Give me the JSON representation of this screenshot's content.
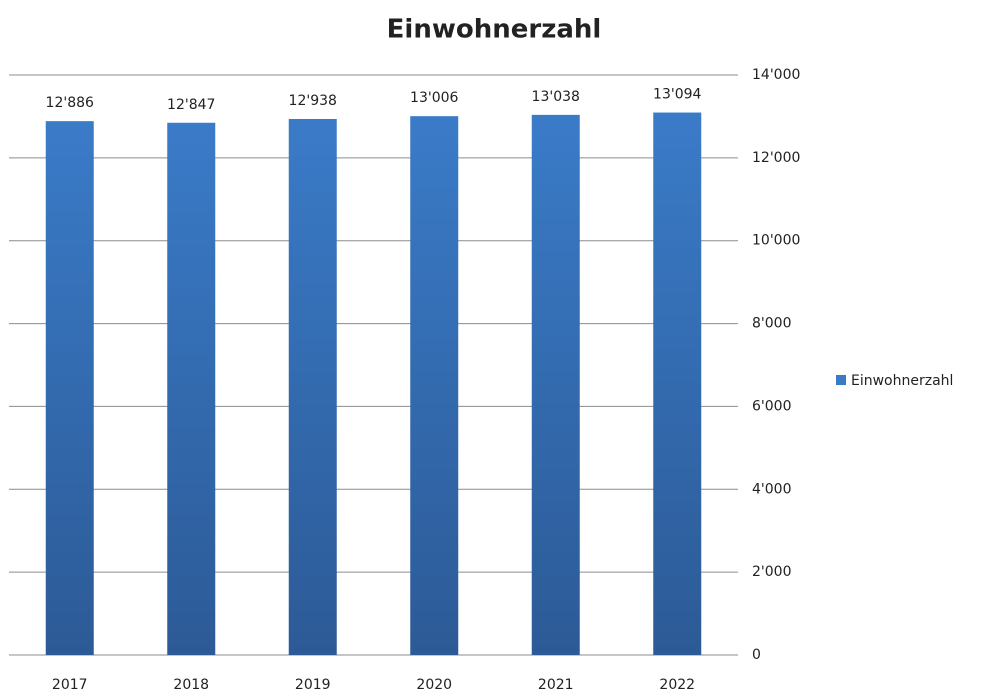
{
  "chart_data": {
    "type": "bar",
    "title": "Einwohnerzahl",
    "categories": [
      "2017",
      "2018",
      "2019",
      "2020",
      "2021",
      "2022"
    ],
    "series": [
      {
        "name": "Einwohnerzahl",
        "color": "#3a7bc8",
        "values": [
          12886,
          12847,
          12938,
          13006,
          13038,
          13094
        ],
        "value_labels": [
          "12'886",
          "12'847",
          "12'938",
          "13'006",
          "13'038",
          "13'094"
        ]
      }
    ],
    "ylim": [
      0,
      14000
    ],
    "yticks": [
      0,
      {
        "value": 2000,
        "label": "2'000"
      },
      {
        "value": 4000,
        "label": "4'000"
      },
      {
        "value": 6000,
        "label": "6'000"
      },
      {
        "value": 8000,
        "label": "8'000"
      },
      {
        "value": 10000,
        "label": "10'000"
      },
      {
        "value": 12000,
        "label": "12'000"
      },
      {
        "value": 14000,
        "label": "14'000"
      }
    ],
    "y_axis_side": "right",
    "grid": true,
    "legend": "right"
  }
}
